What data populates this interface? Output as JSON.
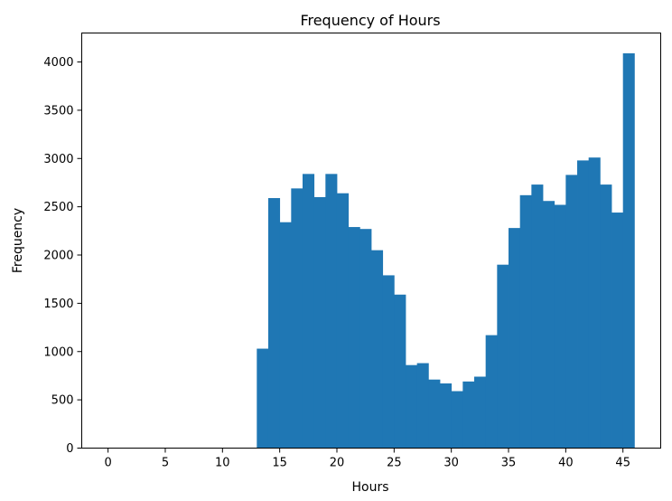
{
  "chart_data": {
    "type": "bar",
    "title": "Frequency of Hours",
    "xlabel": "Hours",
    "ylabel": "Frequency",
    "xlim": [
      -2.3,
      48.3
    ],
    "ylim": [
      0,
      4300
    ],
    "xticks": [
      0,
      5,
      10,
      15,
      20,
      25,
      30,
      35,
      40,
      45
    ],
    "yticks": [
      0,
      500,
      1000,
      1500,
      2000,
      2500,
      3000,
      3500,
      4000
    ],
    "bar_color": "#1f77b4",
    "bin_width": 1,
    "bins": [
      {
        "x": 13,
        "value": 1030
      },
      {
        "x": 14,
        "value": 2590
      },
      {
        "x": 15,
        "value": 2340
      },
      {
        "x": 16,
        "value": 2690
      },
      {
        "x": 17,
        "value": 2840
      },
      {
        "x": 18,
        "value": 2600
      },
      {
        "x": 19,
        "value": 2840
      },
      {
        "x": 20,
        "value": 2640
      },
      {
        "x": 21,
        "value": 2290
      },
      {
        "x": 22,
        "value": 2270
      },
      {
        "x": 23,
        "value": 2050
      },
      {
        "x": 24,
        "value": 1790
      },
      {
        "x": 25,
        "value": 1590
      },
      {
        "x": 26,
        "value": 860
      },
      {
        "x": 27,
        "value": 880
      },
      {
        "x": 28,
        "value": 710
      },
      {
        "x": 29,
        "value": 670
      },
      {
        "x": 30,
        "value": 590
      },
      {
        "x": 31,
        "value": 690
      },
      {
        "x": 32,
        "value": 740
      },
      {
        "x": 33,
        "value": 1170
      },
      {
        "x": 34,
        "value": 1900
      },
      {
        "x": 35,
        "value": 2280
      },
      {
        "x": 36,
        "value": 2620
      },
      {
        "x": 37,
        "value": 2730
      },
      {
        "x": 38,
        "value": 2560
      },
      {
        "x": 39,
        "value": 2520
      },
      {
        "x": 40,
        "value": 2830
      },
      {
        "x": 41,
        "value": 2980
      },
      {
        "x": 42,
        "value": 3010
      },
      {
        "x": 43,
        "value": 2730
      },
      {
        "x": 44,
        "value": 2440
      },
      {
        "x": 45,
        "value": 4090
      }
    ]
  }
}
